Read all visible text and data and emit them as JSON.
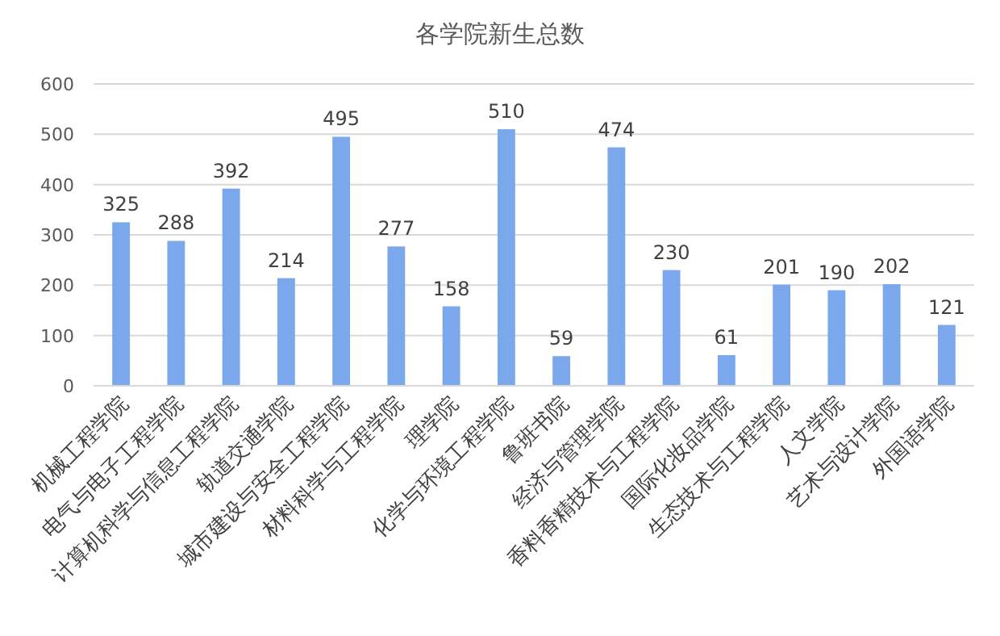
{
  "chart_data": {
    "type": "bar",
    "title": "各学院新生总数",
    "categories": [
      "机械工程学院",
      "电气与电子工程学院",
      "计算机科学与信息工程学院",
      "轨道交通学院",
      "城市建设与安全工程学院",
      "材料科学与工程学院",
      "理学院",
      "化学与环境工程学院",
      "鲁班书院",
      "经济与管理学院",
      "香料香精技术与工程学院",
      "国际化妆品学院",
      "生态技术与工程学院",
      "人文学院",
      "艺术与设计学院",
      "外国语学院"
    ],
    "values": [
      325,
      288,
      392,
      214,
      495,
      277,
      158,
      510,
      59,
      474,
      230,
      61,
      201,
      190,
      202,
      121
    ],
    "color": "#7ba7ec",
    "ylim": [
      0,
      600
    ],
    "yticks": [
      0,
      100,
      200,
      300,
      400,
      500,
      600
    ],
    "grid": "y",
    "data_labels": true
  }
}
